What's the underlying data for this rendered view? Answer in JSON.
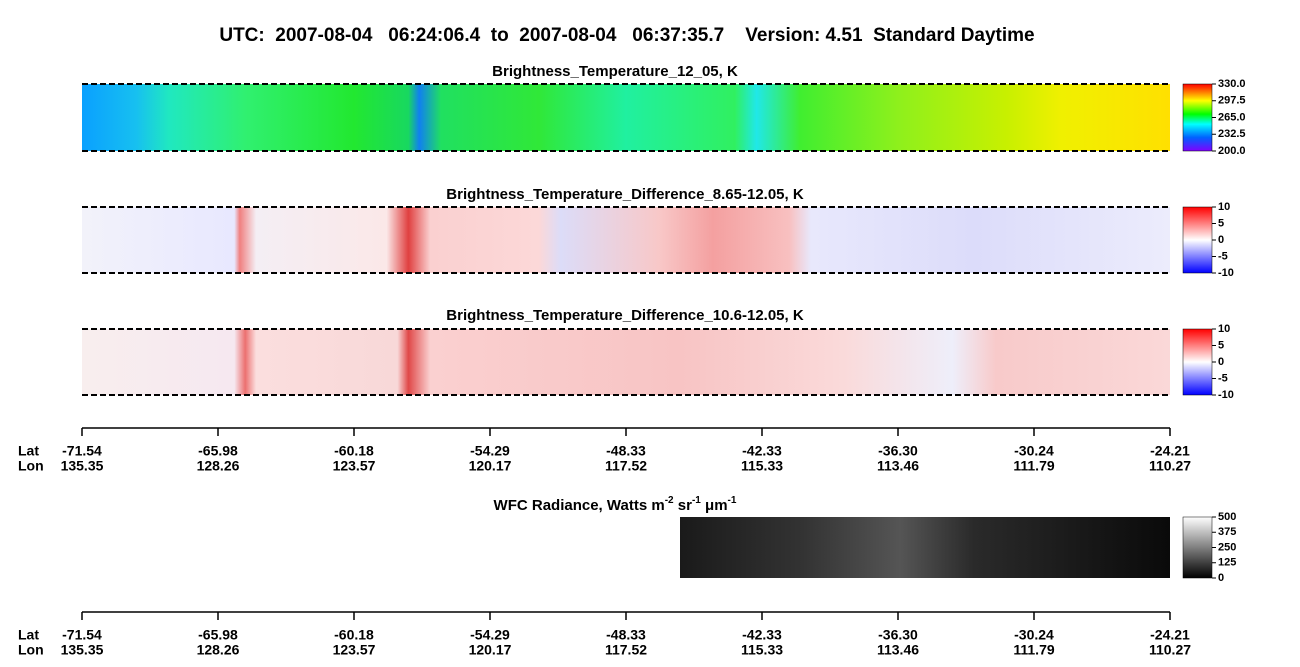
{
  "header": {
    "title": "UTC:  2007-08-04   06:24:06.4  to  2007-08-04   06:37:35.7    Version: 4.51  Standard Daytime"
  },
  "panels": [
    {
      "title": "Brightness_Temperature_12_05, K",
      "colorbar": [
        "330.0",
        "297.5",
        "265.0",
        "232.5",
        "200.0"
      ]
    },
    {
      "title": "Brightness_Temperature_Difference_8.65-12.05, K",
      "colorbar": [
        "10",
        "5",
        "0",
        "-5",
        "-10"
      ]
    },
    {
      "title": "Brightness_Temperature_Difference_10.6-12.05, K",
      "colorbar": [
        "10",
        "5",
        "0",
        "-5",
        "-10"
      ]
    },
    {
      "title_parts": [
        "WFC Radiance, Watts m",
        "-2",
        " sr",
        "-1",
        " μm",
        "-1"
      ],
      "colorbar": [
        "500",
        "375",
        "250",
        "125",
        "0"
      ]
    }
  ],
  "axes": [
    {
      "lat_label": "Lat",
      "lon_label": "Lon",
      "lat": [
        "-71.54",
        "-65.98",
        "-60.18",
        "-54.29",
        "-48.33",
        "-42.33",
        "-36.30",
        "-30.24",
        "-24.21"
      ],
      "lon": [
        "135.35",
        "128.26",
        "123.57",
        "120.17",
        "117.52",
        "115.33",
        "113.46",
        "111.79",
        "110.27"
      ]
    },
    {
      "lat_label": "Lat",
      "lon_label": "Lon",
      "lat": [
        "-71.54",
        "-65.98",
        "-60.18",
        "-54.29",
        "-48.33",
        "-42.33",
        "-36.30",
        "-30.24",
        "-24.21"
      ],
      "lon": [
        "135.35",
        "128.26",
        "123.57",
        "120.17",
        "117.52",
        "115.33",
        "113.46",
        "111.79",
        "110.27"
      ]
    }
  ]
}
